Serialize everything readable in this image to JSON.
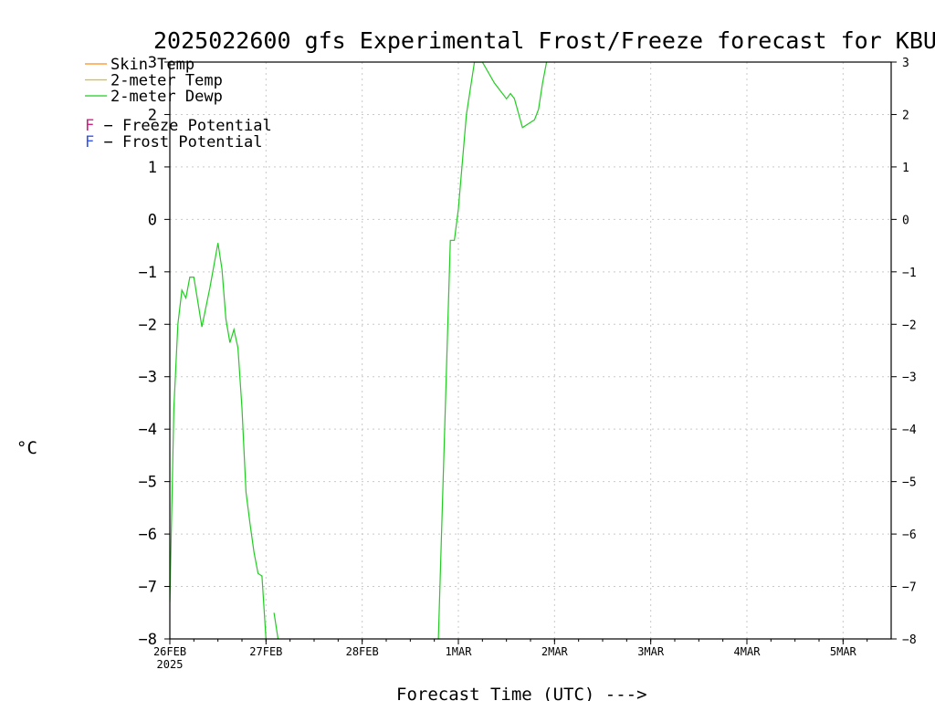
{
  "chart_data": {
    "type": "line",
    "title": "2025022600 gfs Experimental Frost/Freeze forecast for KBUR",
    "xlabel": "Forecast Time (UTC) --->",
    "ylabel": "°C",
    "ylim": [
      -8,
      3
    ],
    "yticks": [
      3,
      2,
      1,
      0,
      -1,
      -2,
      -3,
      -4,
      -5,
      -6,
      -7,
      -8
    ],
    "ytick_labels": [
      "3",
      "2",
      "1",
      "0",
      "−1",
      "−2",
      "−3",
      "−4",
      "−5",
      "−6",
      "−7",
      "−8"
    ],
    "xlim": [
      "2025-02-26T00",
      "2025-03-05T12"
    ],
    "xticks": [
      {
        "label": "26FEB",
        "sub": "2025",
        "t": "2025-02-26T00"
      },
      {
        "label": "27FEB",
        "t": "2025-02-27T00"
      },
      {
        "label": "28FEB",
        "t": "2025-02-28T00"
      },
      {
        "label": "1MAR",
        "t": "2025-03-01T00"
      },
      {
        "label": "2MAR",
        "t": "2025-03-02T00"
      },
      {
        "label": "3MAR",
        "t": "2025-03-03T00"
      },
      {
        "label": "4MAR",
        "t": "2025-03-04T00"
      },
      {
        "label": "5MAR",
        "t": "2025-03-05T00"
      }
    ],
    "grid": true,
    "legend": {
      "position": "top-left",
      "entries": [
        {
          "label": "Skin Temp",
          "color": "#ff8c1a"
        },
        {
          "label": "2-meter Temp",
          "color": "#e6c000"
        },
        {
          "label": "2-meter Dewp",
          "color": "#22cc22"
        }
      ],
      "potential": [
        {
          "letter": "F",
          "text": " − Freeze Potential",
          "color": "#cc2288"
        },
        {
          "letter": "F",
          "text": " − Frost Potential",
          "color": "#3355ee"
        }
      ]
    },
    "series": [
      {
        "name": "2-meter Dewp",
        "color": "#22cc22",
        "segments": [
          [
            {
              "t": "2025-02-26T00",
              "y": -7.3
            },
            {
              "t": "2025-02-26T01",
              "y": -3.6
            },
            {
              "t": "2025-02-26T02",
              "y": -2.0
            },
            {
              "t": "2025-02-26T03",
              "y": -1.35
            },
            {
              "t": "2025-02-26T04",
              "y": -1.5
            },
            {
              "t": "2025-02-26T05",
              "y": -1.1
            },
            {
              "t": "2025-02-26T06",
              "y": -1.1
            },
            {
              "t": "2025-02-26T08",
              "y": -2.05
            },
            {
              "t": "2025-02-26T10",
              "y": -1.3
            },
            {
              "t": "2025-02-26T12",
              "y": -0.45
            },
            {
              "t": "2025-02-26T13",
              "y": -0.95
            },
            {
              "t": "2025-02-26T14",
              "y": -1.9
            },
            {
              "t": "2025-02-26T15",
              "y": -2.35
            },
            {
              "t": "2025-02-26T16",
              "y": -2.1
            },
            {
              "t": "2025-02-26T17",
              "y": -2.45
            },
            {
              "t": "2025-02-26T18",
              "y": -3.6
            },
            {
              "t": "2025-02-26T19",
              "y": -5.2
            },
            {
              "t": "2025-02-26T20",
              "y": -5.8
            },
            {
              "t": "2025-02-26T21",
              "y": -6.35
            },
            {
              "t": "2025-02-26T22",
              "y": -6.75
            },
            {
              "t": "2025-02-26T23",
              "y": -6.8
            },
            {
              "t": "2025-02-27T00",
              "y": -8.0
            }
          ],
          [
            {
              "t": "2025-02-27T02",
              "y": -7.5
            },
            {
              "t": "2025-02-27T03",
              "y": -8.0
            }
          ],
          [
            {
              "t": "2025-02-28T19",
              "y": -8.0
            },
            {
              "t": "2025-02-28T22",
              "y": -0.4
            },
            {
              "t": "2025-02-28T23",
              "y": -0.4
            },
            {
              "t": "2025-03-01T00",
              "y": 0.2
            },
            {
              "t": "2025-03-01T02",
              "y": 2.0
            },
            {
              "t": "2025-03-01T04",
              "y": 3.0
            },
            {
              "t": "2025-03-01T06",
              "y": 3.0
            },
            {
              "t": "2025-03-01T09",
              "y": 2.6
            },
            {
              "t": "2025-03-01T12",
              "y": 2.3
            },
            {
              "t": "2025-03-01T13",
              "y": 2.4
            },
            {
              "t": "2025-03-01T14",
              "y": 2.3
            },
            {
              "t": "2025-03-01T16",
              "y": 1.75
            },
            {
              "t": "2025-03-01T19",
              "y": 1.9
            },
            {
              "t": "2025-03-01T20",
              "y": 2.1
            },
            {
              "t": "2025-03-01T21",
              "y": 2.6
            },
            {
              "t": "2025-03-01T22",
              "y": 3.0
            }
          ]
        ]
      }
    ]
  }
}
